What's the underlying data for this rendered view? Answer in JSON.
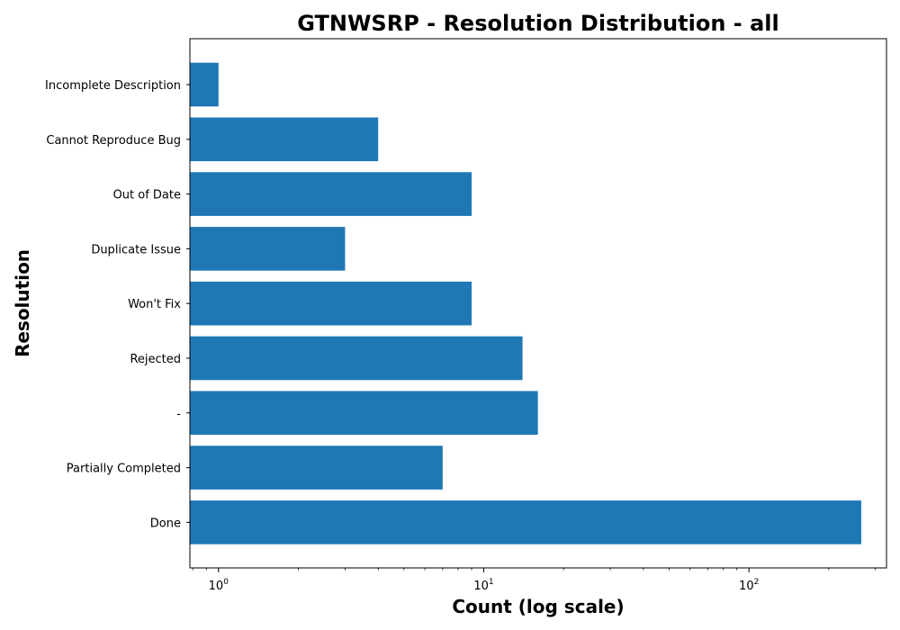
{
  "chart_data": {
    "type": "bar",
    "orientation": "horizontal",
    "title": "GTNWSRP - Resolution Distribution - all",
    "xlabel": "Count (log scale)",
    "ylabel": "Resolution",
    "x_scale": "log",
    "xlim": [
      0.78,
      330
    ],
    "x_ticks": [
      {
        "value": 1,
        "base": "10",
        "exp": "0"
      },
      {
        "value": 10,
        "base": "10",
        "exp": "1"
      },
      {
        "value": 100,
        "base": "10",
        "exp": "2"
      }
    ],
    "categories": [
      "Incomplete Description",
      "Cannot Reproduce Bug",
      "Out of Date",
      "Duplicate Issue",
      "Won't Fix",
      "Rejected",
      "-",
      "Partially Completed",
      "Done"
    ],
    "values": [
      1,
      4,
      9,
      3,
      9,
      14,
      16,
      7,
      265
    ],
    "bar_color": "#1f77b4",
    "grid": false,
    "legend": "none"
  }
}
